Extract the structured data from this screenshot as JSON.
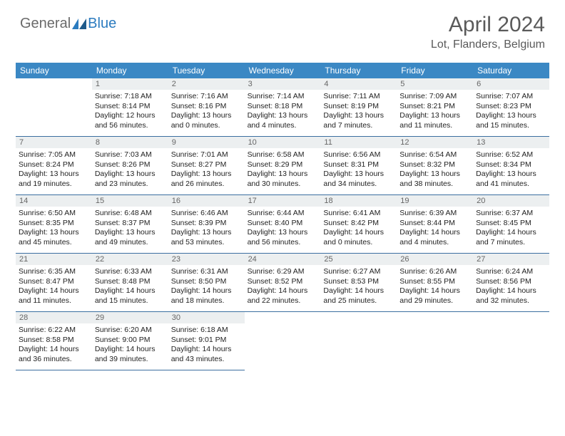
{
  "logo": {
    "part1": "General",
    "part2": "Blue"
  },
  "title": "April 2024",
  "location": "Lot, Flanders, Belgium",
  "weekdays": [
    "Sunday",
    "Monday",
    "Tuesday",
    "Wednesday",
    "Thursday",
    "Friday",
    "Saturday"
  ],
  "colors": {
    "header_bar": "#3b88c4",
    "daynum_bg": "#eceff0",
    "border": "#3b6fa0",
    "logo_gray": "#6a6a6a",
    "logo_blue": "#2b7bbf",
    "title_gray": "#5a5a5a"
  },
  "leading_blanks": 1,
  "days": [
    {
      "n": 1,
      "sr": "7:18 AM",
      "ss": "8:14 PM",
      "d1": "12 hours",
      "d2": "and 56 minutes."
    },
    {
      "n": 2,
      "sr": "7:16 AM",
      "ss": "8:16 PM",
      "d1": "13 hours",
      "d2": "and 0 minutes."
    },
    {
      "n": 3,
      "sr": "7:14 AM",
      "ss": "8:18 PM",
      "d1": "13 hours",
      "d2": "and 4 minutes."
    },
    {
      "n": 4,
      "sr": "7:11 AM",
      "ss": "8:19 PM",
      "d1": "13 hours",
      "d2": "and 7 minutes."
    },
    {
      "n": 5,
      "sr": "7:09 AM",
      "ss": "8:21 PM",
      "d1": "13 hours",
      "d2": "and 11 minutes."
    },
    {
      "n": 6,
      "sr": "7:07 AM",
      "ss": "8:23 PM",
      "d1": "13 hours",
      "d2": "and 15 minutes."
    },
    {
      "n": 7,
      "sr": "7:05 AM",
      "ss": "8:24 PM",
      "d1": "13 hours",
      "d2": "and 19 minutes."
    },
    {
      "n": 8,
      "sr": "7:03 AM",
      "ss": "8:26 PM",
      "d1": "13 hours",
      "d2": "and 23 minutes."
    },
    {
      "n": 9,
      "sr": "7:01 AM",
      "ss": "8:27 PM",
      "d1": "13 hours",
      "d2": "and 26 minutes."
    },
    {
      "n": 10,
      "sr": "6:58 AM",
      "ss": "8:29 PM",
      "d1": "13 hours",
      "d2": "and 30 minutes."
    },
    {
      "n": 11,
      "sr": "6:56 AM",
      "ss": "8:31 PM",
      "d1": "13 hours",
      "d2": "and 34 minutes."
    },
    {
      "n": 12,
      "sr": "6:54 AM",
      "ss": "8:32 PM",
      "d1": "13 hours",
      "d2": "and 38 minutes."
    },
    {
      "n": 13,
      "sr": "6:52 AM",
      "ss": "8:34 PM",
      "d1": "13 hours",
      "d2": "and 41 minutes."
    },
    {
      "n": 14,
      "sr": "6:50 AM",
      "ss": "8:35 PM",
      "d1": "13 hours",
      "d2": "and 45 minutes."
    },
    {
      "n": 15,
      "sr": "6:48 AM",
      "ss": "8:37 PM",
      "d1": "13 hours",
      "d2": "and 49 minutes."
    },
    {
      "n": 16,
      "sr": "6:46 AM",
      "ss": "8:39 PM",
      "d1": "13 hours",
      "d2": "and 53 minutes."
    },
    {
      "n": 17,
      "sr": "6:44 AM",
      "ss": "8:40 PM",
      "d1": "13 hours",
      "d2": "and 56 minutes."
    },
    {
      "n": 18,
      "sr": "6:41 AM",
      "ss": "8:42 PM",
      "d1": "14 hours",
      "d2": "and 0 minutes."
    },
    {
      "n": 19,
      "sr": "6:39 AM",
      "ss": "8:44 PM",
      "d1": "14 hours",
      "d2": "and 4 minutes."
    },
    {
      "n": 20,
      "sr": "6:37 AM",
      "ss": "8:45 PM",
      "d1": "14 hours",
      "d2": "and 7 minutes."
    },
    {
      "n": 21,
      "sr": "6:35 AM",
      "ss": "8:47 PM",
      "d1": "14 hours",
      "d2": "and 11 minutes."
    },
    {
      "n": 22,
      "sr": "6:33 AM",
      "ss": "8:48 PM",
      "d1": "14 hours",
      "d2": "and 15 minutes."
    },
    {
      "n": 23,
      "sr": "6:31 AM",
      "ss": "8:50 PM",
      "d1": "14 hours",
      "d2": "and 18 minutes."
    },
    {
      "n": 24,
      "sr": "6:29 AM",
      "ss": "8:52 PM",
      "d1": "14 hours",
      "d2": "and 22 minutes."
    },
    {
      "n": 25,
      "sr": "6:27 AM",
      "ss": "8:53 PM",
      "d1": "14 hours",
      "d2": "and 25 minutes."
    },
    {
      "n": 26,
      "sr": "6:26 AM",
      "ss": "8:55 PM",
      "d1": "14 hours",
      "d2": "and 29 minutes."
    },
    {
      "n": 27,
      "sr": "6:24 AM",
      "ss": "8:56 PM",
      "d1": "14 hours",
      "d2": "and 32 minutes."
    },
    {
      "n": 28,
      "sr": "6:22 AM",
      "ss": "8:58 PM",
      "d1": "14 hours",
      "d2": "and 36 minutes."
    },
    {
      "n": 29,
      "sr": "6:20 AM",
      "ss": "9:00 PM",
      "d1": "14 hours",
      "d2": "and 39 minutes."
    },
    {
      "n": 30,
      "sr": "6:18 AM",
      "ss": "9:01 PM",
      "d1": "14 hours",
      "d2": "and 43 minutes."
    }
  ],
  "labels": {
    "sunrise": "Sunrise: ",
    "sunset": "Sunset: ",
    "daylight": "Daylight: "
  }
}
